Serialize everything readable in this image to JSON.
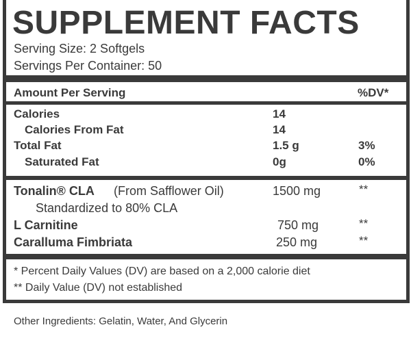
{
  "title": "SUPPLEMENT FACTS",
  "serving_size": "Serving Size: 2 Softgels",
  "servings_per_container": "Servings Per Container: 50",
  "header": {
    "amount": "Amount Per Serving",
    "dv": "%DV*"
  },
  "nutrients": [
    {
      "name": "Calories",
      "amount": "14"
    },
    {
      "name": "Calories From Fat",
      "amount": "14"
    },
    {
      "name": "Total Fat",
      "amount": "1.5 g",
      "dv": "3%"
    },
    {
      "name": "Saturated Fat",
      "amount": "0g",
      "dv": "0%"
    }
  ],
  "ingredients": [
    {
      "name": "Tonalin® CLA",
      "source": "(From Safflower Oil)",
      "amount": "1500 mg",
      "dv": "**",
      "note": "Standardized to 80% CLA"
    },
    {
      "name": "L Carnitine",
      "amount": "750 mg",
      "dv": "**"
    },
    {
      "name": "Caralluma Fimbriata",
      "amount": "250 mg",
      "dv": "**"
    }
  ],
  "footnotes": [
    "* Percent Daily Values (DV) are based on a 2,000 calorie diet",
    "** Daily Value (DV) not established"
  ],
  "other_ingredients": "Other Ingredients: Gelatin, Water, And Glycerin"
}
